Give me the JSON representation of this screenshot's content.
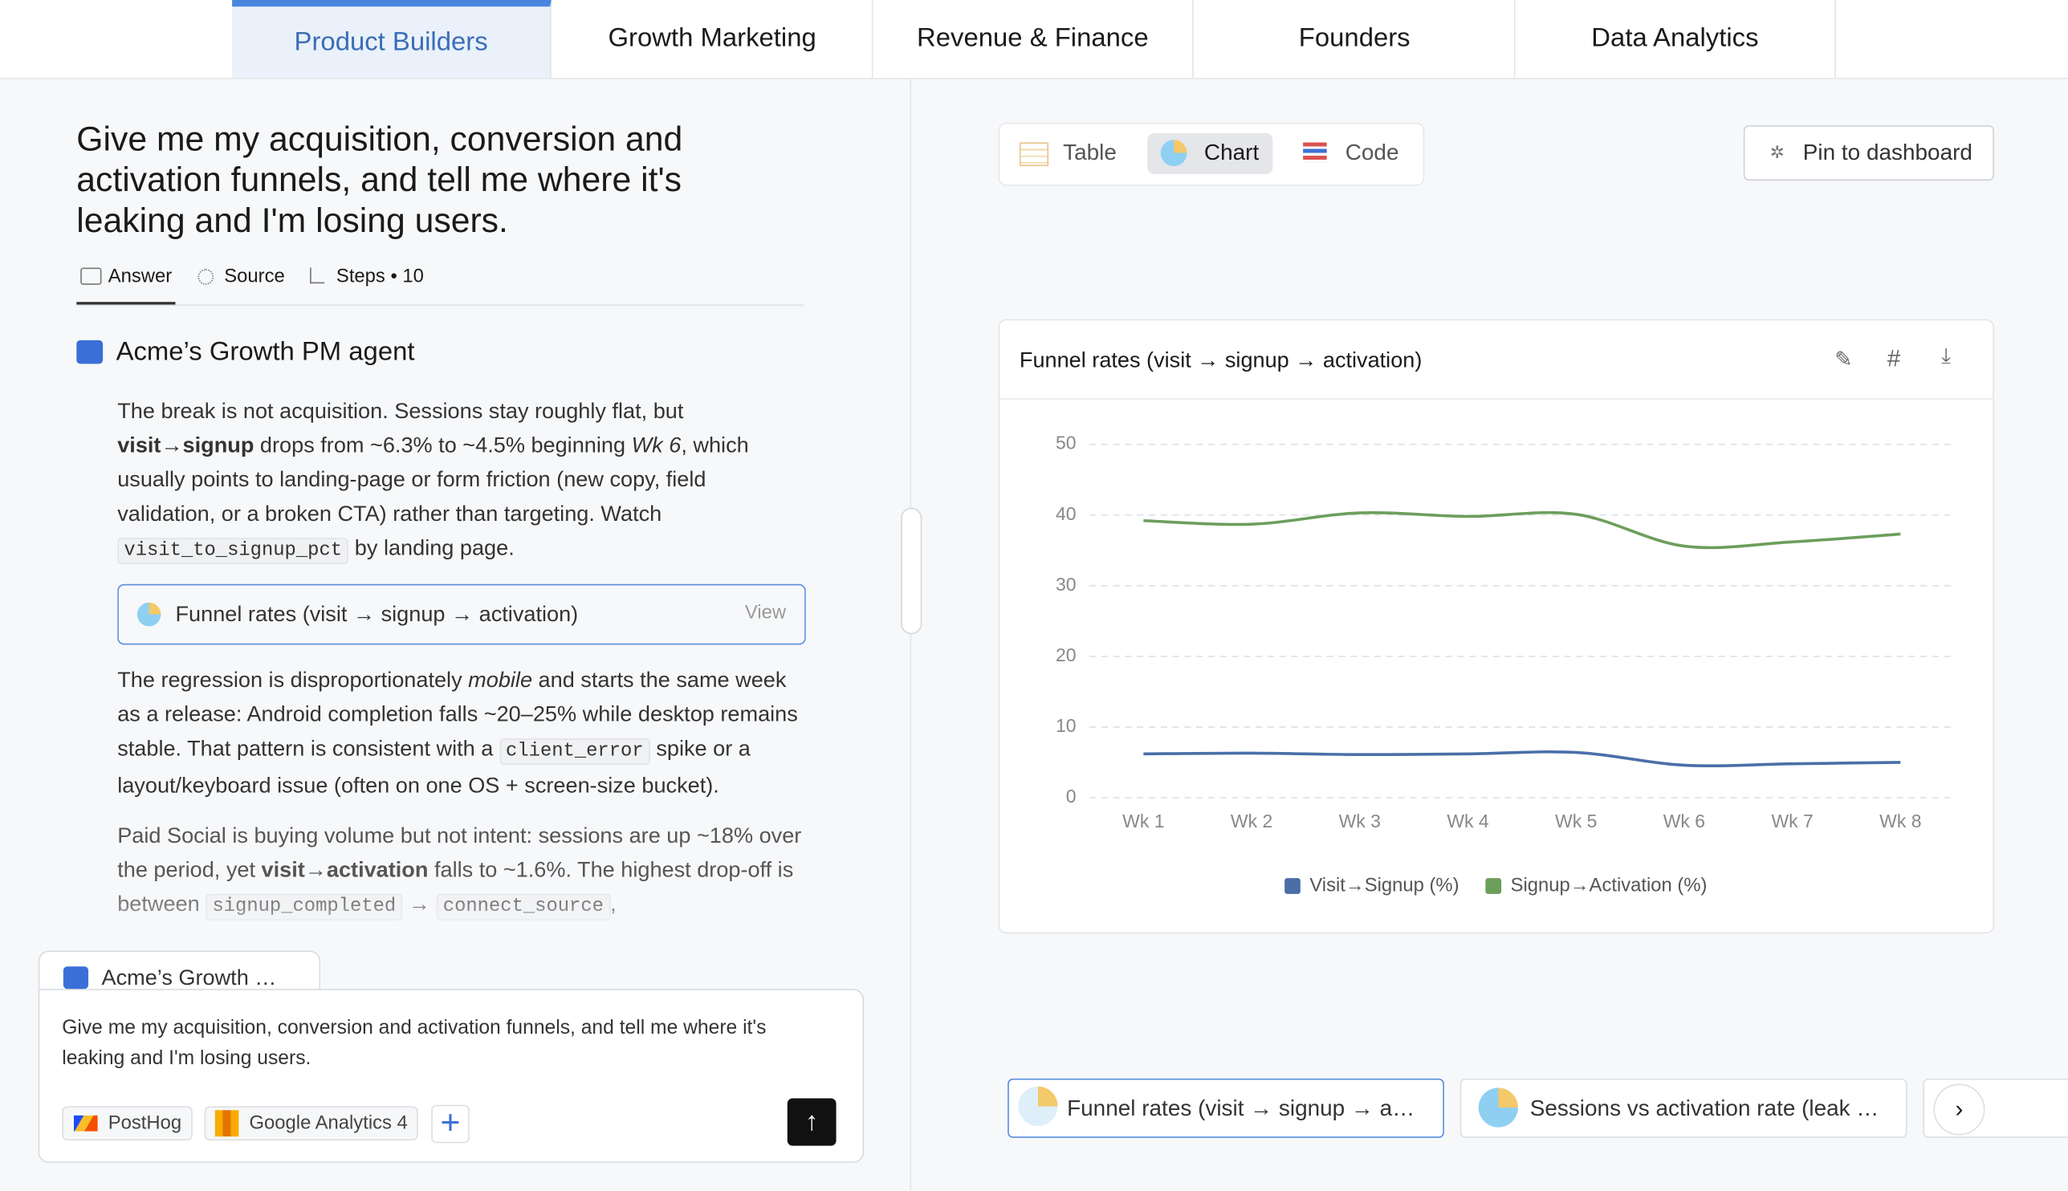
{
  "tabs": [
    "Product Builders",
    "Growth Marketing",
    "Revenue & Finance",
    "Founders",
    "Data Analytics"
  ],
  "question": "Give me my acquisition, conversion and activation funnels, and tell me where it's leaking and I'm losing users.",
  "answer_tabs": [
    "Answer",
    "Source",
    "Steps • 10"
  ],
  "agent": "Acme’s Growth PM agent",
  "paragraphs": [
    [
      "The break is not acquisition. Sessions stay roughly flat, but ",
      "visit→signup",
      " drops from ~6.3% to ~4.5% beginning ",
      "Wk 6",
      ", which usually points to landing-page or form friction (new copy, field validation, or a broken CTA) rather than targeting. Watch ",
      "visit_to_signup_pct",
      " by landing page."
    ],
    [
      "The regression is disproportionately ",
      "mobile",
      " and starts the same week as a release: Android completion falls ~20–25% while desktop remains stable. That pattern is consistent with a ",
      "client_error",
      " spike or a layout/keyboard issue (often on one OS + screen-size bucket)."
    ],
    [
      "Paid Social is buying volume but not intent: sessions are up ~18% over the period, yet ",
      "visit→activation",
      " falls to ~1.6%. The highest drop-off is between ",
      "signup_completed",
      " → ",
      "connect_source",
      ","
    ]
  ],
  "inline_card": {
    "title": "Funnel rates (visit → signup → activation)",
    "action": "View"
  },
  "composer": {
    "agent": "Acme’s Growth …",
    "text": "Give me my acquisition, conversion and activation funnels, and tell me where it's leaking and I'm losing users.",
    "sources": [
      "PostHog",
      "Google Analytics 4"
    ]
  },
  "view_tabs": [
    "Table",
    "Chart",
    "Code"
  ],
  "pin": "Pin to dashboard",
  "bottom_cards": [
    "Funnel rates (visit → signup → a…",
    "Sessions vs activation rate (leak …"
  ],
  "chart_data": {
    "type": "line",
    "title": "Funnel rates (visit → signup → activation)",
    "categories": [
      "Wk 1",
      "Wk 2",
      "Wk 3",
      "Wk 4",
      "Wk 5",
      "Wk 6",
      "Wk 7",
      "Wk 8"
    ],
    "series": [
      {
        "name": "Visit→Signup (%)",
        "color": "#4a6fa8",
        "values": [
          6.2,
          6.3,
          6.1,
          6.2,
          6.4,
          4.6,
          4.8,
          5.0
        ]
      },
      {
        "name": "Signup→Activation (%)",
        "color": "#6c9e5c",
        "values": [
          39.2,
          38.7,
          40.3,
          39.8,
          40.1,
          35.6,
          36.2,
          37.3
        ]
      }
    ],
    "ylim": [
      0,
      50
    ],
    "yticks": [
      0,
      10,
      20,
      30,
      40,
      50
    ],
    "grid": true,
    "legend": "bottom"
  }
}
